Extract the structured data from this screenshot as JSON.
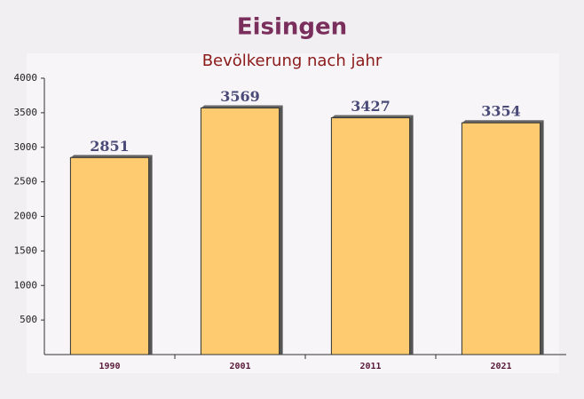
{
  "chart_data": {
    "type": "bar",
    "title": "Eisingen",
    "subtitle": "Bevölkerung nach jahr",
    "categories": [
      "1990",
      "2001",
      "2011",
      "2021"
    ],
    "values": [
      2851,
      3569,
      3427,
      3354
    ],
    "color": "#ffc04d",
    "ylim": [
      0,
      4000
    ],
    "yticks": [
      500,
      1000,
      1500,
      2000,
      2500,
      3000,
      3500,
      4000
    ]
  }
}
